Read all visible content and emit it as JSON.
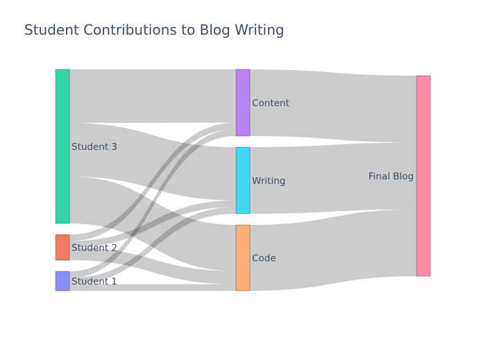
{
  "chart_data": {
    "type": "sankey",
    "title": "Student Contributions to Blog Writing",
    "nodes": [
      {
        "id": "student3",
        "label": "Student 3",
        "color": "#33d6a6"
      },
      {
        "id": "student2",
        "label": "Student 2",
        "color": "#f47a61"
      },
      {
        "id": "student1",
        "label": "Student 1",
        "color": "#8a8cf7"
      },
      {
        "id": "content",
        "label": "Content",
        "color": "#b882f5"
      },
      {
        "id": "writing",
        "label": "Writing",
        "color": "#3dd9f2"
      },
      {
        "id": "code",
        "label": "Code",
        "color": "#ffad78"
      },
      {
        "id": "final",
        "label": "Final Blog",
        "color": "#fc8aa8"
      }
    ],
    "links": [
      {
        "source": "student3",
        "target": "content",
        "value": 8
      },
      {
        "source": "student3",
        "target": "writing",
        "value": 8
      },
      {
        "source": "student3",
        "target": "code",
        "value": 7
      },
      {
        "source": "student2",
        "target": "content",
        "value": 1
      },
      {
        "source": "student2",
        "target": "writing",
        "value": 1
      },
      {
        "source": "student2",
        "target": "code",
        "value": 2
      },
      {
        "source": "student1",
        "target": "content",
        "value": 1
      },
      {
        "source": "student1",
        "target": "writing",
        "value": 1
      },
      {
        "source": "student1",
        "target": "code",
        "value": 1
      },
      {
        "source": "content",
        "target": "final",
        "value": 10
      },
      {
        "source": "writing",
        "target": "final",
        "value": 10
      },
      {
        "source": "code",
        "target": "final",
        "value": 10
      }
    ]
  }
}
